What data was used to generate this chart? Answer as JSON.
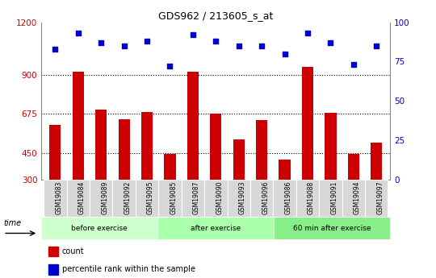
{
  "title": "GDS962 / 213605_s_at",
  "samples": [
    "GSM19083",
    "GSM19084",
    "GSM19089",
    "GSM19092",
    "GSM19095",
    "GSM19085",
    "GSM19087",
    "GSM19090",
    "GSM19093",
    "GSM19096",
    "GSM19086",
    "GSM19088",
    "GSM19091",
    "GSM19094",
    "GSM19097"
  ],
  "counts": [
    610,
    915,
    700,
    645,
    685,
    445,
    915,
    675,
    530,
    640,
    415,
    945,
    680,
    445,
    510
  ],
  "percentiles": [
    83,
    93,
    87,
    85,
    88,
    72,
    92,
    88,
    85,
    85,
    80,
    93,
    87,
    73,
    85
  ],
  "groups": [
    {
      "label": "before exercise",
      "start": 0,
      "end": 5,
      "color": "#ccffcc"
    },
    {
      "label": "after exercise",
      "start": 5,
      "end": 10,
      "color": "#aaffaa"
    },
    {
      "label": "60 min after exercise",
      "start": 10,
      "end": 15,
      "color": "#88ee88"
    }
  ],
  "ylim_left": [
    300,
    1200
  ],
  "ylim_right": [
    0,
    100
  ],
  "yticks_left": [
    300,
    450,
    675,
    900,
    1200
  ],
  "yticks_right": [
    0,
    25,
    50,
    75,
    100
  ],
  "bar_color": "#cc0000",
  "dot_color": "#0000cc",
  "bg_color": "#ffffff",
  "tick_label_color_left": "#cc0000",
  "tick_label_color_right": "#0000cc",
  "legend_items": [
    "count",
    "percentile rank within the sample"
  ],
  "gridlines_at": [
    450,
    675,
    900
  ]
}
